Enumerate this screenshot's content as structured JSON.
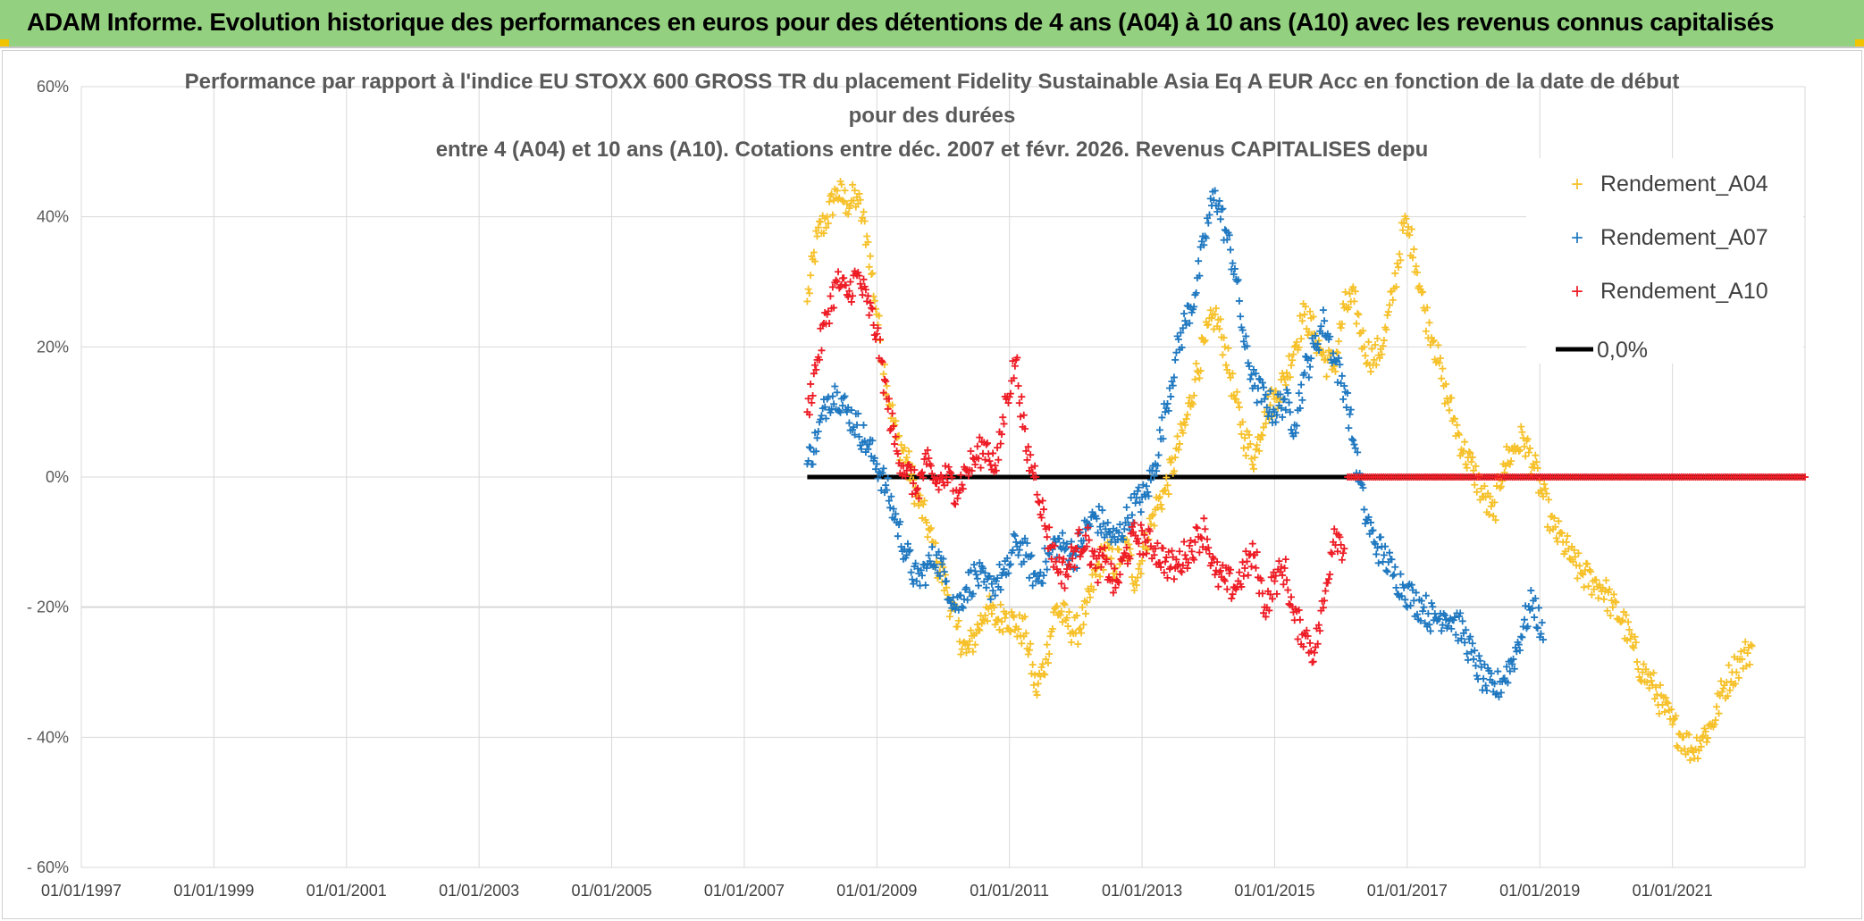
{
  "header": {
    "title": "ADAM Informe. Evolution historique des performances en euros pour des détentions de 4 ans (A04) à 10 ans (A10) avec les revenus connus capitalisés"
  },
  "colors": {
    "banner": "#93d07f",
    "A04": "#f6c12a",
    "A07": "#1f78c0",
    "A10": "#ee1c25",
    "zero": "#000000",
    "grid": "#d9d9d9"
  },
  "chart_data": {
    "type": "scatter",
    "title_lines": [
      "Performance par rapport à l'indice EU STOXX 600 GROSS TR  du placement Fidelity Sustainable Asia Eq A EUR Acc en fonction de la date de début",
      "pour des durées",
      "entre 4 (A04) et 10 ans (A10). Cotations entre déc. 2007 et févr. 2026. Revenus CAPITALISES depu"
    ],
    "xlim": [
      1997.0,
      2023.0
    ],
    "ylim": [
      -60,
      60
    ],
    "x_ticks": [
      1997,
      1999,
      2001,
      2003,
      2005,
      2007,
      2009,
      2011,
      2013,
      2015,
      2017,
      2019,
      2021
    ],
    "x_tick_labels": [
      "01/01/1997",
      "01/01/1999",
      "01/01/2001",
      "01/01/2003",
      "01/01/2005",
      "01/01/2007",
      "01/01/2009",
      "01/01/2011",
      "01/01/2013",
      "01/01/2015",
      "01/01/2017",
      "01/01/2019",
      "01/01/2021"
    ],
    "y_ticks": [
      60,
      40,
      20,
      0,
      -20,
      -40,
      -60
    ],
    "y_tick_labels": [
      "60%",
      "40%",
      "20%",
      "0%",
      "- 20%",
      "- 40%",
      "- 60%"
    ],
    "legend_position": "top-right",
    "series": [
      {
        "name": "Rendement_A04",
        "marker": "plus",
        "x": [
          2007.95,
          2008.1,
          2008.25,
          2008.4,
          2008.55,
          2008.7,
          2008.85,
          2009.0,
          2009.15,
          2009.3,
          2009.45,
          2009.6,
          2009.75,
          2009.9,
          2010.05,
          2010.2,
          2010.35,
          2010.5,
          2010.65,
          2010.8,
          2010.95,
          2011.1,
          2011.25,
          2011.4,
          2011.55,
          2011.7,
          2011.85,
          2012.0,
          2012.15,
          2012.3,
          2012.45,
          2012.6,
          2012.75,
          2012.9,
          2013.05,
          2013.2,
          2013.35,
          2013.5,
          2013.65,
          2013.8,
          2013.95,
          2014.1,
          2014.25,
          2014.4,
          2014.55,
          2014.7,
          2014.85,
          2015.0,
          2015.15,
          2015.3,
          2015.45,
          2015.6,
          2015.75,
          2015.9,
          2016.05,
          2016.2,
          2016.35,
          2016.5,
          2016.65,
          2016.8,
          2016.95,
          2017.1,
          2017.25,
          2017.4,
          2017.55,
          2017.7,
          2017.85,
          2018.0,
          2018.15,
          2018.3,
          2018.45,
          2018.6,
          2018.75,
          2018.9,
          2019.05,
          2019.2,
          2019.35,
          2019.5,
          2019.65,
          2019.8,
          2019.95,
          2020.1,
          2020.25,
          2020.4,
          2020.55,
          2020.7,
          2020.85,
          2021.0,
          2021.15,
          2021.3,
          2021.45,
          2021.6,
          2021.75,
          2021.9,
          2022.05,
          2022.2
        ],
        "y": [
          27,
          37,
          40,
          44,
          42,
          43,
          37,
          25,
          14,
          6,
          3,
          -3,
          -7,
          -13,
          -17,
          -23,
          -27,
          -24,
          -20,
          -22,
          -21,
          -23,
          -24,
          -33,
          -28,
          -20,
          -22,
          -24,
          -21,
          -15,
          -11,
          -14,
          -10,
          -16,
          -10,
          -5,
          -2,
          3,
          8,
          15,
          21,
          25,
          20,
          12,
          6,
          3,
          10,
          12,
          15,
          20,
          25,
          22,
          18,
          17,
          26,
          27,
          20,
          18,
          21,
          29,
          39,
          35,
          26,
          21,
          14,
          9,
          4,
          1,
          -3,
          -6,
          2,
          4,
          6,
          2,
          -3,
          -8,
          -10,
          -13,
          -15,
          -16,
          -17,
          -20,
          -22,
          -26,
          -30,
          -32,
          -35,
          -38,
          -40,
          -42,
          -40,
          -38,
          -33,
          -30,
          -28,
          -26
        ]
      },
      {
        "name": "Rendement_A07",
        "marker": "plus",
        "x": [
          2007.95,
          2008.1,
          2008.25,
          2008.4,
          2008.55,
          2008.7,
          2008.85,
          2009.0,
          2009.15,
          2009.3,
          2009.45,
          2009.6,
          2009.75,
          2009.9,
          2010.05,
          2010.2,
          2010.35,
          2010.5,
          2010.65,
          2010.8,
          2010.95,
          2011.1,
          2011.25,
          2011.4,
          2011.55,
          2011.7,
          2011.85,
          2012.0,
          2012.15,
          2012.3,
          2012.45,
          2012.6,
          2012.75,
          2012.9,
          2013.05,
          2013.2,
          2013.35,
          2013.5,
          2013.65,
          2013.8,
          2013.95,
          2014.1,
          2014.25,
          2014.4,
          2014.55,
          2014.7,
          2014.85,
          2015.0,
          2015.15,
          2015.3,
          2015.45,
          2015.6,
          2015.75,
          2015.9,
          2016.05,
          2016.2,
          2016.35,
          2016.5,
          2016.65,
          2016.8,
          2016.95,
          2017.1,
          2017.25,
          2017.4,
          2017.55,
          2017.7,
          2017.85,
          2018.0,
          2018.15,
          2018.3,
          2018.45,
          2018.6,
          2018.75,
          2018.9,
          2019.05
        ],
        "y": [
          2,
          6,
          12,
          13,
          10,
          8,
          5,
          2,
          -2,
          -7,
          -12,
          -16,
          -14,
          -12,
          -16,
          -20,
          -17,
          -15,
          -17,
          -16,
          -15,
          -10,
          -12,
          -16,
          -13,
          -10,
          -11,
          -12,
          -8,
          -6,
          -8,
          -10,
          -7,
          -4,
          -3,
          2,
          10,
          18,
          24,
          28,
          37,
          44,
          38,
          32,
          20,
          14,
          12,
          10,
          12,
          8,
          16,
          20,
          24,
          18,
          14,
          5,
          -5,
          -10,
          -12,
          -15,
          -17,
          -19,
          -20,
          -22,
          -21,
          -22,
          -24,
          -28,
          -31,
          -33,
          -31,
          -28,
          -23,
          -19,
          -25
        ]
      },
      {
        "name": "Rendement_A10",
        "marker": "plus",
        "x": [
          2007.95,
          2008.1,
          2008.25,
          2008.4,
          2008.55,
          2008.7,
          2008.85,
          2009.0,
          2009.15,
          2009.3,
          2009.45,
          2009.6,
          2009.75,
          2009.9,
          2010.05,
          2010.2,
          2010.35,
          2010.5,
          2010.65,
          2010.8,
          2010.95,
          2011.1,
          2011.25,
          2011.4,
          2011.55,
          2011.7,
          2011.85,
          2012.0,
          2012.15,
          2012.3,
          2012.45,
          2012.6,
          2012.75,
          2012.9,
          2013.05,
          2013.2,
          2013.35,
          2013.5,
          2013.65,
          2013.8,
          2013.95,
          2014.1,
          2014.25,
          2014.4,
          2014.55,
          2014.7,
          2014.85,
          2015.0,
          2015.15,
          2015.3,
          2015.45,
          2015.6,
          2015.75,
          2015.9,
          2016.05
        ],
        "y": [
          10,
          18,
          25,
          30,
          28,
          31,
          27,
          22,
          12,
          4,
          1,
          -2,
          2,
          -1,
          0,
          -2,
          1,
          3,
          5,
          1,
          12,
          18,
          4,
          0,
          -8,
          -13,
          -15,
          -11,
          -9,
          -14,
          -13,
          -17,
          -12,
          -9,
          -10,
          -11,
          -13,
          -14,
          -12,
          -10,
          -8,
          -15,
          -16,
          -17,
          -14,
          -12,
          -20,
          -16,
          -14,
          -22,
          -24,
          -27,
          -19,
          -8,
          -11
        ]
      },
      {
        "name": "0,0%",
        "marker": "line",
        "x": [
          2007.95,
          2023.0
        ],
        "y": [
          0,
          0
        ]
      }
    ],
    "a10_zero_plateau": {
      "x": [
        2016.1,
        2023.0
      ],
      "y": 0
    }
  }
}
